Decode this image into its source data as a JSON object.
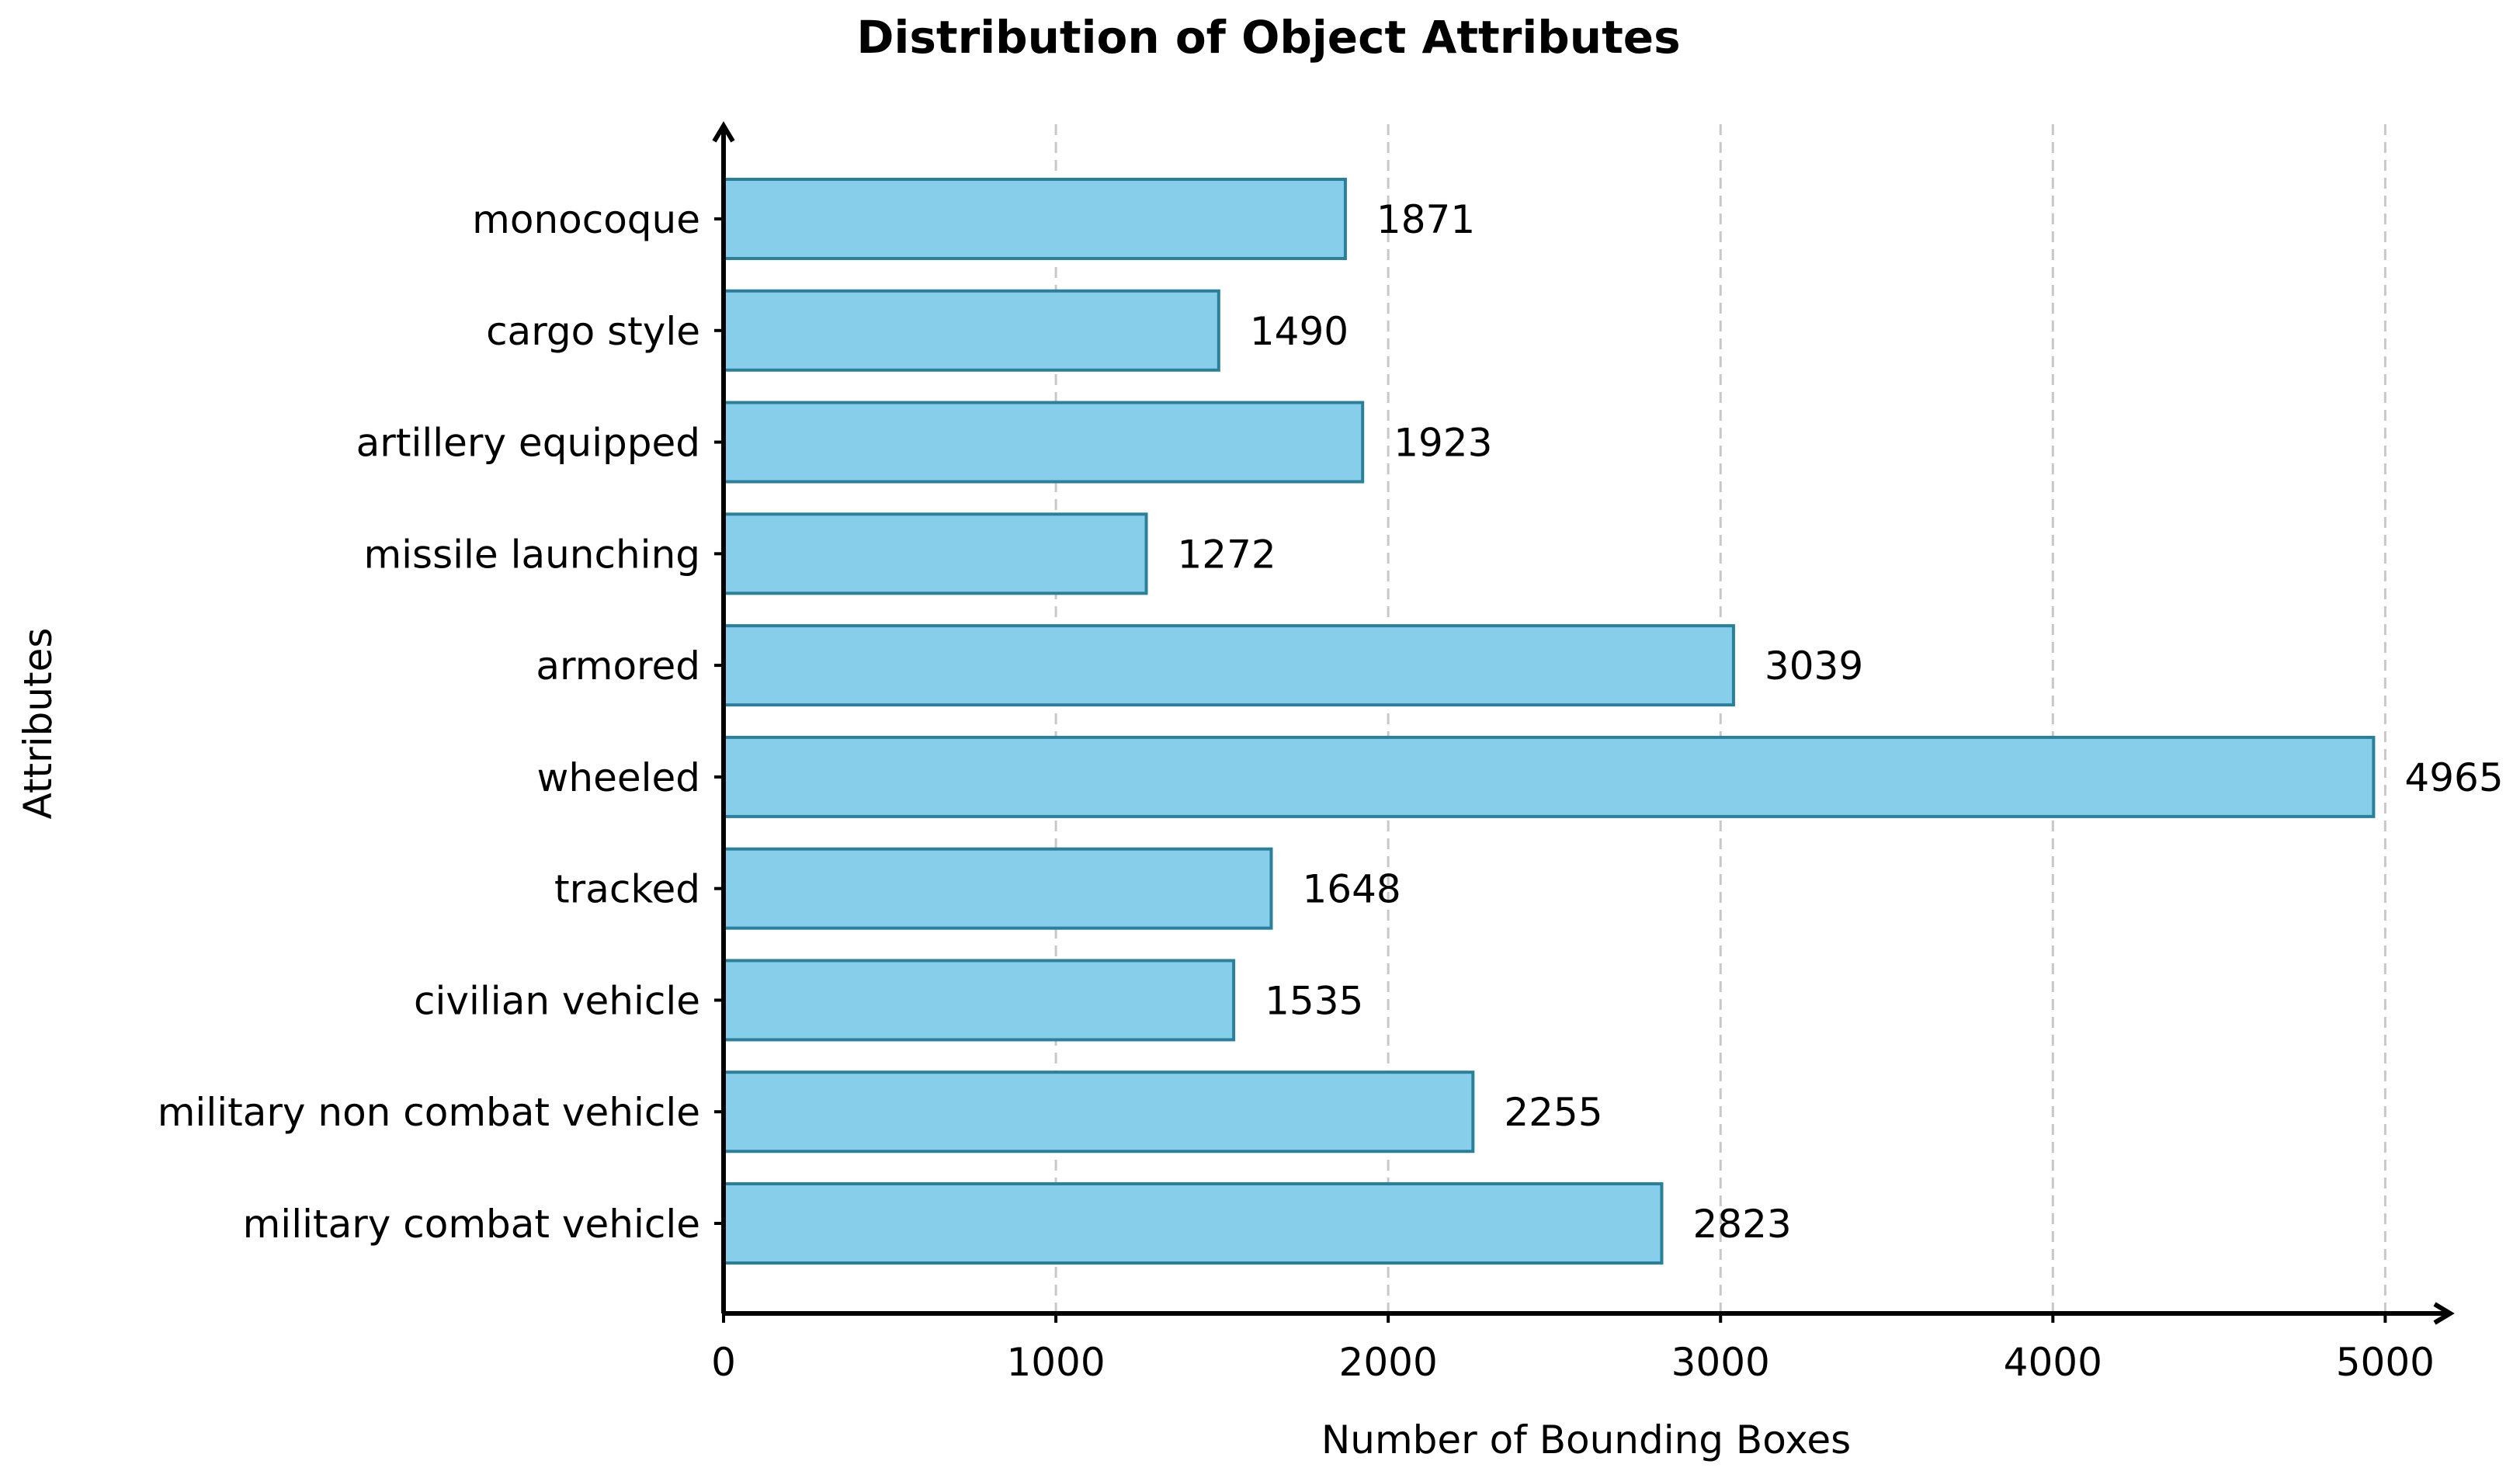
{
  "chart_data": {
    "type": "bar",
    "orientation": "horizontal",
    "title": "Distribution of Object Attributes",
    "xlabel": "Number of Bounding Boxes",
    "ylabel": "Attributes",
    "categories": [
      "military combat vehicle",
      "military non combat vehicle",
      "civilian vehicle",
      "tracked",
      "wheeled",
      "armored",
      "missile launching",
      "artillery equipped",
      "cargo style",
      "monocoque"
    ],
    "values": [
      2823,
      2255,
      1535,
      1648,
      4965,
      3039,
      1272,
      1923,
      1490,
      1871
    ],
    "xlim": [
      0,
      5200
    ],
    "xticks": [
      0,
      1000,
      2000,
      3000,
      4000,
      5000
    ],
    "xtick_labels": [
      "0",
      "1000",
      "2000",
      "3000",
      "4000",
      "5000"
    ],
    "grid": "x, dashed",
    "bar_color": "#87ceeb",
    "bar_edge_color": "#2a7f9a",
    "data_labels": true
  }
}
